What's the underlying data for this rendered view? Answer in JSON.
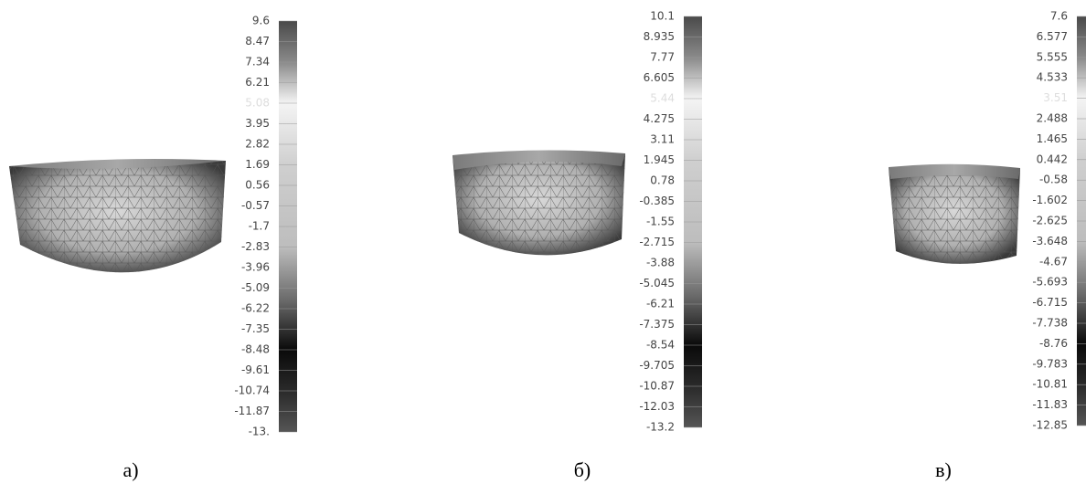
{
  "panels": [
    {
      "label": "а)",
      "scale_labels": [
        "9.6",
        "8.47",
        "7.34",
        "6.21",
        "5.08",
        "3.95",
        "2.82",
        "1.69",
        "0.56",
        "-0.57",
        "-1.7",
        "-2.83",
        "-3.96",
        "-5.09",
        "-6.22",
        "-7.35",
        "-8.48",
        "-9.61",
        "-10.74",
        "-11.87",
        "-13."
      ]
    },
    {
      "label": "б)",
      "scale_labels": [
        "10.1",
        "8.935",
        "7.77",
        "6.605",
        "5.44",
        "4.275",
        "3.11",
        "1.945",
        "0.78",
        "-0.385",
        "-1.55",
        "-2.715",
        "-3.88",
        "-5.045",
        "-6.21",
        "-7.375",
        "-8.54",
        "-9.705",
        "-10.87",
        "-12.03",
        "-13.2"
      ]
    },
    {
      "label": "в)",
      "scale_labels": [
        "7.6",
        "6.577",
        "5.555",
        "4.533",
        "3.51",
        "2.488",
        "1.465",
        "0.442",
        "-0.58",
        "-1.602",
        "-2.625",
        "-3.648",
        "-4.67",
        "-5.693",
        "-6.715",
        "-7.738",
        "-8.76",
        "-9.783",
        "-10.81",
        "-11.83",
        "-12.85"
      ]
    }
  ]
}
